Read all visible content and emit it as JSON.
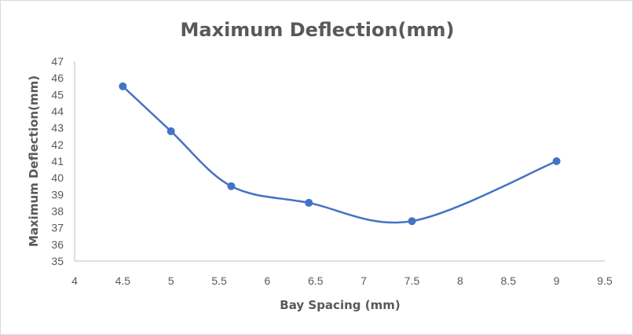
{
  "chart_data": {
    "type": "scatter",
    "title": "Maximum Deflection(mm)",
    "xlabel": "Bay Spacing (mm)",
    "ylabel": "Maximum Deflection(mm)",
    "xlim": [
      4,
      9.5
    ],
    "ylim": [
      35,
      47
    ],
    "x_ticks": [
      4,
      4.5,
      5,
      5.5,
      6,
      6.5,
      7,
      7.5,
      8,
      8.5,
      9,
      9.5
    ],
    "y_ticks": [
      35,
      36,
      37,
      38,
      39,
      40,
      41,
      42,
      43,
      44,
      45,
      46,
      47
    ],
    "line_style": "smooth",
    "markers": true,
    "grid": false,
    "legend": "none",
    "series_color": "#4472c4",
    "series": [
      {
        "x": [
          4.5,
          5,
          5.625,
          6.43,
          7.5,
          9
        ],
        "values": [
          45.5,
          42.8,
          39.5,
          38.5,
          37.4,
          41
        ]
      }
    ]
  }
}
